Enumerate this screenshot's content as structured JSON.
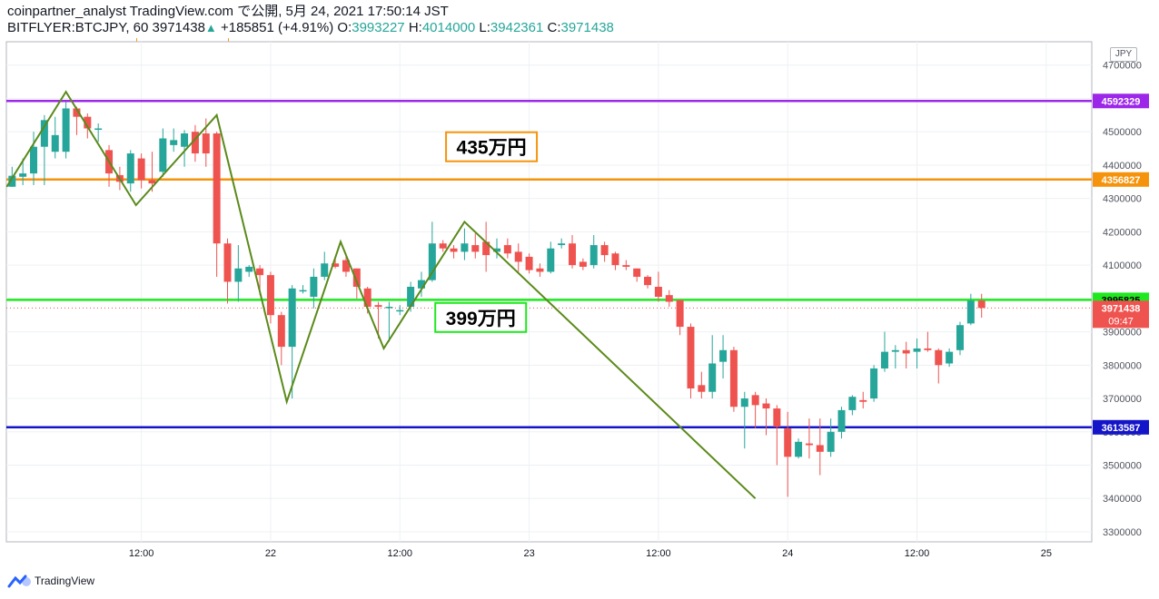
{
  "header": {
    "line1": "coinpartner_analyst TradingView.com で公開, 5月 24, 2021 17:50:14 JST",
    "symbol": "BITFLYER:BTCJPY, 60",
    "last": "3971438",
    "arrow": "▲",
    "change": "+185851 (+4.91%)",
    "o_label": "O:",
    "o": "3993227",
    "h_label": "H:",
    "h": "4014000",
    "l_label": "L:",
    "l": "3942361",
    "c_label": "C:",
    "c": "3971438"
  },
  "footer": {
    "brand": "TradingView"
  },
  "currency": "JPY",
  "chart_data": {
    "type": "candlestick",
    "y_range": [
      3270000,
      4770000
    ],
    "y_ticks": [
      3300000,
      3400000,
      3500000,
      3600000,
      3700000,
      3800000,
      3900000,
      4000000,
      4100000,
      4200000,
      4300000,
      4400000,
      4500000,
      4600000,
      4700000
    ],
    "y_tick_labels": [
      "3300000",
      "3400000",
      "3500000",
      "3600000",
      "3700000",
      "3800000",
      "3900000",
      "4000000",
      "4100000",
      "4200000",
      "4300000",
      "4400000",
      "4500000",
      "4600000",
      "4700000"
    ],
    "x_tick_labels": [
      "12:00",
      "22",
      "12:00",
      "23",
      "12:00",
      "24",
      "12:00",
      "25"
    ],
    "x_tick_hours": [
      12,
      24,
      36,
      48,
      60,
      72,
      84,
      96
    ],
    "candles_start_hour": 0,
    "candles": [
      [
        4335000,
        4368000,
        4395000,
        4335000
      ],
      [
        4365000,
        4375000,
        4420000,
        4340000
      ],
      [
        4375000,
        4455000,
        4500000,
        4340000
      ],
      [
        4455000,
        4535000,
        4550000,
        4340000
      ],
      [
        4440000,
        4490000,
        4545000,
        4420000
      ],
      [
        4440000,
        4570000,
        4590000,
        4420000
      ],
      [
        4570000,
        4545000,
        4575000,
        4490000
      ],
      [
        4545000,
        4510000,
        4555000,
        4480000
      ],
      [
        4510000,
        4510000,
        4525000,
        4470000
      ],
      [
        4445000,
        4375000,
        4460000,
        4335000
      ],
      [
        4370000,
        4350000,
        4395000,
        4325000
      ],
      [
        4345000,
        4435000,
        4445000,
        4320000
      ],
      [
        4420000,
        4355000,
        4435000,
        4330000
      ],
      [
        4355000,
        4345000,
        4440000,
        4320000
      ],
      [
        4380000,
        4480000,
        4510000,
        4365000
      ],
      [
        4460000,
        4475000,
        4510000,
        4440000
      ],
      [
        4455000,
        4495000,
        4505000,
        4395000
      ],
      [
        4500000,
        4435000,
        4520000,
        4410000
      ],
      [
        4495000,
        4435000,
        4540000,
        4395000
      ],
      [
        4495000,
        4165000,
        4500000,
        4065000
      ],
      [
        4165000,
        4050000,
        4180000,
        3985000
      ],
      [
        4050000,
        4090000,
        4160000,
        3990000
      ],
      [
        4080000,
        4095000,
        4100000,
        4065000
      ],
      [
        4090000,
        4070000,
        4100000,
        4010000
      ],
      [
        4070000,
        3950000,
        4080000,
        3925000
      ],
      [
        3950000,
        3855000,
        3960000,
        3800000
      ],
      [
        3855000,
        4030000,
        4040000,
        3700000
      ],
      [
        4025000,
        4025000,
        4040000,
        4015000
      ],
      [
        4005000,
        4065000,
        4090000,
        3970000
      ],
      [
        4065000,
        4105000,
        4140000,
        4055000
      ],
      [
        4105000,
        4095000,
        4120000,
        4090000
      ],
      [
        4115000,
        4080000,
        4135000,
        4065000
      ],
      [
        4090000,
        4035000,
        4090000,
        4000000
      ],
      [
        4030000,
        3975000,
        4035000,
        3955000
      ],
      [
        3980000,
        3975000,
        3990000,
        3880000
      ],
      [
        3975000,
        3975000,
        3990000,
        3870000
      ],
      [
        3965000,
        3965000,
        3980000,
        3950000
      ],
      [
        3975000,
        4035000,
        4050000,
        3960000
      ],
      [
        4030000,
        4055000,
        4080000,
        4005000
      ],
      [
        4055000,
        4165000,
        4230000,
        4050000
      ],
      [
        4165000,
        4150000,
        4175000,
        4140000
      ],
      [
        4150000,
        4140000,
        4160000,
        4120000
      ],
      [
        4140000,
        4165000,
        4210000,
        4115000
      ],
      [
        4160000,
        4140000,
        4195000,
        4120000
      ],
      [
        4170000,
        4130000,
        4230000,
        4080000
      ],
      [
        4140000,
        4150000,
        4180000,
        4120000
      ],
      [
        4160000,
        4135000,
        4180000,
        4120000
      ],
      [
        4140000,
        4110000,
        4165000,
        4080000
      ],
      [
        4125000,
        4085000,
        4135000,
        4075000
      ],
      [
        4090000,
        4080000,
        4105000,
        4065000
      ],
      [
        4080000,
        4150000,
        4170000,
        4075000
      ],
      [
        4160000,
        4165000,
        4180000,
        4150000
      ],
      [
        4165000,
        4100000,
        4190000,
        4090000
      ],
      [
        4110000,
        4095000,
        4120000,
        4085000
      ],
      [
        4100000,
        4160000,
        4190000,
        4090000
      ],
      [
        4160000,
        4130000,
        4170000,
        4110000
      ],
      [
        4135000,
        4100000,
        4140000,
        4085000
      ],
      [
        4100000,
        4095000,
        4115000,
        4085000
      ],
      [
        4090000,
        4065000,
        4090000,
        4050000
      ],
      [
        4065000,
        4040000,
        4070000,
        4030000
      ],
      [
        4035000,
        4005000,
        4080000,
        3990000
      ],
      [
        4010000,
        3990000,
        4025000,
        3975000
      ],
      [
        3995000,
        3915000,
        3995000,
        3890000
      ],
      [
        3915000,
        3730000,
        3925000,
        3700000
      ],
      [
        3740000,
        3720000,
        3780000,
        3700000
      ],
      [
        3720000,
        3805000,
        3890000,
        3700000
      ],
      [
        3810000,
        3845000,
        3890000,
        3760000
      ],
      [
        3845000,
        3675000,
        3855000,
        3660000
      ],
      [
        3675000,
        3700000,
        3720000,
        3550000
      ],
      [
        3710000,
        3680000,
        3720000,
        3610000
      ],
      [
        3685000,
        3670000,
        3700000,
        3590000
      ],
      [
        3670000,
        3615000,
        3680000,
        3500000
      ],
      [
        3610000,
        3525000,
        3660000,
        3405000
      ],
      [
        3525000,
        3570000,
        3580000,
        3520000
      ],
      [
        3565000,
        3560000,
        3640000,
        3520000
      ],
      [
        3560000,
        3540000,
        3640000,
        3470000
      ],
      [
        3540000,
        3600000,
        3640000,
        3525000
      ],
      [
        3600000,
        3665000,
        3675000,
        3580000
      ],
      [
        3665000,
        3705000,
        3710000,
        3650000
      ],
      [
        3695000,
        3690000,
        3720000,
        3670000
      ],
      [
        3700000,
        3790000,
        3800000,
        3690000
      ],
      [
        3790000,
        3840000,
        3900000,
        3780000
      ],
      [
        3840000,
        3845000,
        3860000,
        3790000
      ],
      [
        3845000,
        3835000,
        3870000,
        3790000
      ],
      [
        3840000,
        3850000,
        3880000,
        3790000
      ],
      [
        3850000,
        3845000,
        3900000,
        3840000
      ],
      [
        3845000,
        3800000,
        3850000,
        3745000
      ],
      [
        3805000,
        3840000,
        3850000,
        3795000
      ],
      [
        3845000,
        3920000,
        3930000,
        3830000
      ],
      [
        3925000,
        3993227,
        4014000,
        3920000
      ],
      [
        3993227,
        3971438,
        4014000,
        3942361
      ]
    ],
    "horizontal_lines": [
      {
        "price": 4592329,
        "label": "4592329",
        "color": "#9c27e8"
      },
      {
        "price": 4356827,
        "label": "4356827",
        "color": "#f5940c"
      },
      {
        "price": 3995825,
        "label": "3995825",
        "color": "#1fe81f"
      },
      {
        "price": 3613587,
        "label": "3613587",
        "color": "#1414c8"
      }
    ],
    "last_price": {
      "price": 3971438,
      "label": "3971438",
      "countdown": "09:47",
      "color": "#ef5350"
    },
    "zigzag": [
      [
        -0.5,
        4335000
      ],
      [
        5,
        4620000
      ],
      [
        11.5,
        4280000
      ],
      [
        19,
        4550000
      ],
      [
        25.5,
        3690000
      ],
      [
        30.5,
        4170000
      ],
      [
        34.5,
        3850000
      ],
      [
        42,
        4230000
      ],
      [
        69,
        3400000
      ]
    ],
    "annotations": [
      {
        "text": "435万円",
        "price": 4455000,
        "hour": 44.5,
        "border": "#f5940c"
      },
      {
        "text": "399万円",
        "price": 3943000,
        "hour": 43.5,
        "border": "#1fe81f"
      }
    ]
  }
}
